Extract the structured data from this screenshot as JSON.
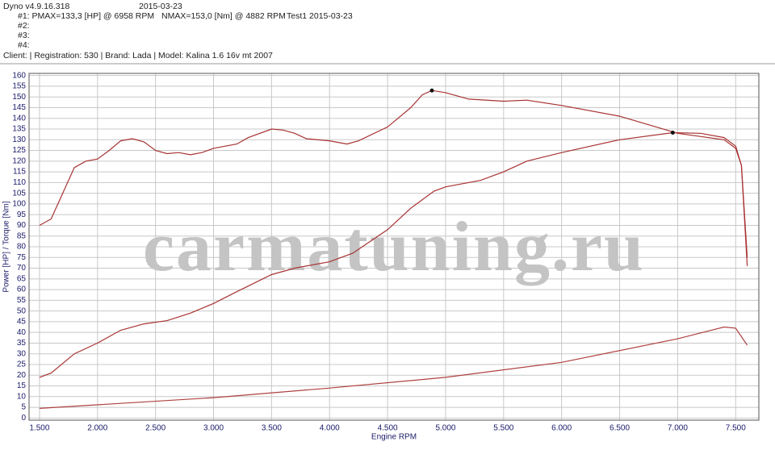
{
  "chart_data": {
    "type": "line",
    "header": {
      "app": "Dyno v4.9.16.318",
      "date": "2015-03-23",
      "run1": "#1: PMAX=133,3 [HP] @ 6958 RPM",
      "run1_torque": "NMAX=153,0 [Nm] @ 4882 RPM",
      "run1_test": "Test1 2015-03-23",
      "run2": "#2:",
      "run3": "#3:",
      "run4": "#4:",
      "client": "Client:  | Registration: 530 | Brand: Lada | Model: Kalina 1.6 16v  mt 2007"
    },
    "watermark": "carmatuning.ru",
    "x_label": "Engine RPM",
    "y_label": "Power [HP] / Torque [Nm]",
    "xlim": [
      1410,
      7700
    ],
    "ylim": [
      -1,
      161
    ],
    "xticks": [
      {
        "value": 1500,
        "label": "1.500"
      },
      {
        "value": 2000,
        "label": "2.000"
      },
      {
        "value": 2500,
        "label": "2.500"
      },
      {
        "value": 3000,
        "label": "3.000"
      },
      {
        "value": 3500,
        "label": "3.500"
      },
      {
        "value": 4000,
        "label": "4.000"
      },
      {
        "value": 4500,
        "label": "4.500"
      },
      {
        "value": 5000,
        "label": "5.000"
      },
      {
        "value": 5500,
        "label": "5.500"
      },
      {
        "value": 6000,
        "label": "6.000"
      },
      {
        "value": 6500,
        "label": "6.500"
      },
      {
        "value": 7000,
        "label": "7.000"
      },
      {
        "value": 7500,
        "label": "7.500"
      }
    ],
    "yticks": [
      0,
      5,
      10,
      15,
      20,
      25,
      30,
      35,
      40,
      45,
      50,
      55,
      60,
      65,
      70,
      75,
      80,
      85,
      90,
      95,
      100,
      105,
      110,
      115,
      120,
      125,
      130,
      135,
      140,
      145,
      150,
      155,
      160
    ],
    "grid": true,
    "series": [
      {
        "color": "#a83232",
        "x": [
          1500,
          1600,
          1700,
          1800,
          1900,
          2000,
          2100,
          2200,
          2300,
          2400,
          2500,
          2600,
          2700,
          2800,
          2900,
          3000,
          3200,
          3300,
          3500,
          3600,
          3700,
          3800,
          4000,
          4150,
          4250,
          4500,
          4700,
          4800,
          4882,
          5000,
          5200,
          5500,
          5700,
          6000,
          6500,
          7000,
          7200,
          7400,
          7500,
          7550,
          7600
        ],
        "values": [
          90,
          93,
          105,
          117,
          120,
          121,
          125,
          129.5,
          130.5,
          129,
          125,
          123.5,
          124,
          123,
          124,
          126,
          128,
          131,
          135,
          134.5,
          133,
          130.5,
          129.5,
          128,
          129.5,
          136,
          145,
          151,
          153,
          152,
          149,
          148,
          148.5,
          146,
          141,
          133,
          131.5,
          130,
          126,
          118,
          75
        ]
      },
      {
        "color": "#a83232",
        "x": [
          1500,
          1600,
          1800,
          2000,
          2200,
          2400,
          2600,
          2800,
          3000,
          3200,
          3500,
          3700,
          4000,
          4200,
          4500,
          4700,
          4900,
          5000,
          5300,
          5500,
          5700,
          6000,
          6500,
          6958,
          7200,
          7400,
          7500,
          7550,
          7600
        ],
        "values": [
          19,
          21,
          30,
          35,
          41,
          44,
          45.5,
          49,
          53.5,
          59,
          67,
          70,
          73,
          77,
          88,
          98,
          106,
          108,
          111,
          115,
          120,
          124,
          130,
          133.3,
          133,
          131,
          127,
          118,
          71
        ]
      },
      {
        "color": "#b04040",
        "x": [
          1500,
          3000,
          4000,
          5000,
          6000,
          7000,
          7400,
          7500,
          7550,
          7600
        ],
        "values": [
          4.5,
          9.5,
          14,
          19,
          26,
          37,
          42.5,
          42,
          38,
          34
        ]
      }
    ],
    "markers": [
      {
        "x": 4882,
        "y": 153
      },
      {
        "x": 6958,
        "y": 133.3
      }
    ]
  }
}
